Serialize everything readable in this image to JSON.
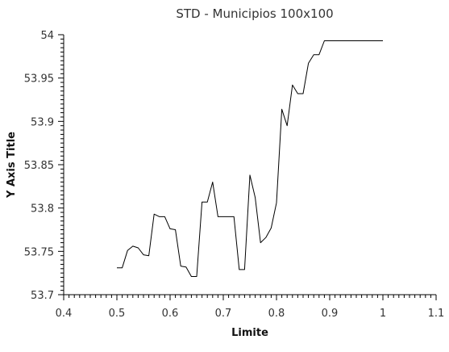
{
  "chart_data": {
    "type": "line",
    "title": "STD - Municipios 100x100",
    "xlabel": "Limite",
    "ylabel": "Y Axis Title",
    "xlim": [
      0.4,
      1.1
    ],
    "ylim": [
      53.7,
      54.0
    ],
    "x_ticks": [
      0.4,
      0.5,
      0.6,
      0.7,
      0.8,
      0.9,
      1.0,
      1.1
    ],
    "x_tick_labels": [
      "0.4",
      "0.5",
      "0.6",
      "0.7",
      "0.8",
      "0.9",
      "1",
      "1.1"
    ],
    "y_ticks": [
      53.7,
      53.75,
      53.8,
      53.85,
      53.9,
      53.95,
      54.0
    ],
    "y_tick_labels": [
      "53.7",
      "53.75",
      "53.8",
      "53.85",
      "53.9",
      "53.95",
      "54"
    ],
    "grid": false,
    "line_color": "#000000",
    "series": [
      {
        "x": [
          0.5,
          0.51,
          0.52,
          0.53,
          0.54,
          0.55,
          0.56,
          0.57,
          0.58,
          0.59,
          0.6,
          0.61,
          0.62,
          0.63,
          0.64,
          0.65,
          0.66,
          0.67,
          0.68,
          0.69,
          0.7,
          0.71,
          0.72,
          0.73,
          0.74,
          0.75,
          0.76,
          0.77,
          0.78,
          0.79,
          0.8,
          0.81,
          0.82,
          0.83,
          0.84,
          0.85,
          0.86,
          0.87,
          0.88,
          0.89,
          0.9,
          0.91,
          0.92,
          0.93,
          0.94,
          0.95,
          0.96,
          0.97,
          0.98,
          0.99,
          1.0
        ],
        "values": [
          53.731,
          53.731,
          53.751,
          53.756,
          53.754,
          53.746,
          53.745,
          53.793,
          53.79,
          53.79,
          53.776,
          53.775,
          53.733,
          53.732,
          53.721,
          53.721,
          53.807,
          53.807,
          53.83,
          53.79,
          53.79,
          53.79,
          53.79,
          53.729,
          53.729,
          53.838,
          53.812,
          53.76,
          53.766,
          53.777,
          53.806,
          53.914,
          53.895,
          53.942,
          53.932,
          53.932,
          53.967,
          53.977,
          53.977,
          53.993,
          53.993,
          53.993,
          53.993,
          53.993,
          53.993,
          53.993,
          53.993,
          53.993,
          53.993,
          53.993,
          53.993
        ]
      }
    ]
  }
}
